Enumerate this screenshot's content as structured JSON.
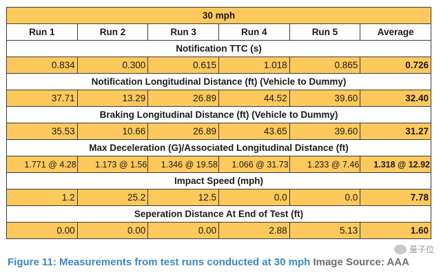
{
  "table": {
    "title": "30 mph",
    "columns": [
      "Run 1",
      "Run 2",
      "Run 3",
      "Run 4",
      "Run 5",
      "Average"
    ],
    "sections": [
      {
        "label": "Notification TTC (s)",
        "runs": [
          "0.834",
          "0.300",
          "0.615",
          "1.018",
          "0.865"
        ],
        "average": "0.726"
      },
      {
        "label": "Notification Longitudinal Distance (ft) (Vehicle to Dummy)",
        "runs": [
          "37.71",
          "13.29",
          "26.89",
          "44.52",
          "39.60"
        ],
        "average": "32.40"
      },
      {
        "label": "Braking Longitudinal Distance (ft) (Vehicle to Dummy)",
        "runs": [
          "35.53",
          "10.66",
          "26.89",
          "43.65",
          "39.60"
        ],
        "average": "31.27"
      },
      {
        "label": "Max Deceleration (G)/Associated Longitudinal Distance (ft)",
        "runs": [
          "1.771 @ 4.28",
          "1.173 @ 1.56",
          "1.346 @ 19.58",
          "1.066 @ 31.73",
          "1.233 @ 7.46"
        ],
        "average": "1.318 @ 12.92"
      },
      {
        "label": "Impact Speed (mph)",
        "runs": [
          "1.2",
          "25.2",
          "12.5",
          "0.0",
          "0.0"
        ],
        "average": "7.78"
      },
      {
        "label": "Seperation Distance At End of Test (ft)",
        "runs": [
          "0.00",
          "0.00",
          "0.00",
          "2.88",
          "5.13"
        ],
        "average": "1.60"
      }
    ]
  },
  "caption": {
    "figure": "Figure 11: Measurements from test runs conducted at 30 mph",
    "source": "Image Source: AAA"
  },
  "watermark": {
    "text": "量子位",
    "icon": "wechat-icon"
  },
  "colors": {
    "yellow": "#fec95c",
    "caption_blue": "#3d87c2"
  }
}
